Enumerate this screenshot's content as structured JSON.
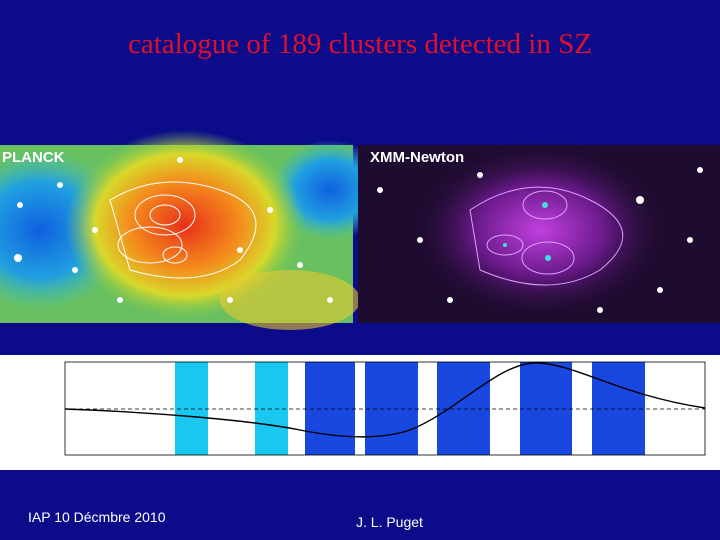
{
  "title": "catalogue of 189 clusters detected in SZ",
  "images": [
    {
      "label": "PLANCK"
    },
    {
      "label": "XMM-Newton"
    }
  ],
  "footer": {
    "left": "IAP 10 Décmbre 2010",
    "right": "J. L. Puget"
  }
}
